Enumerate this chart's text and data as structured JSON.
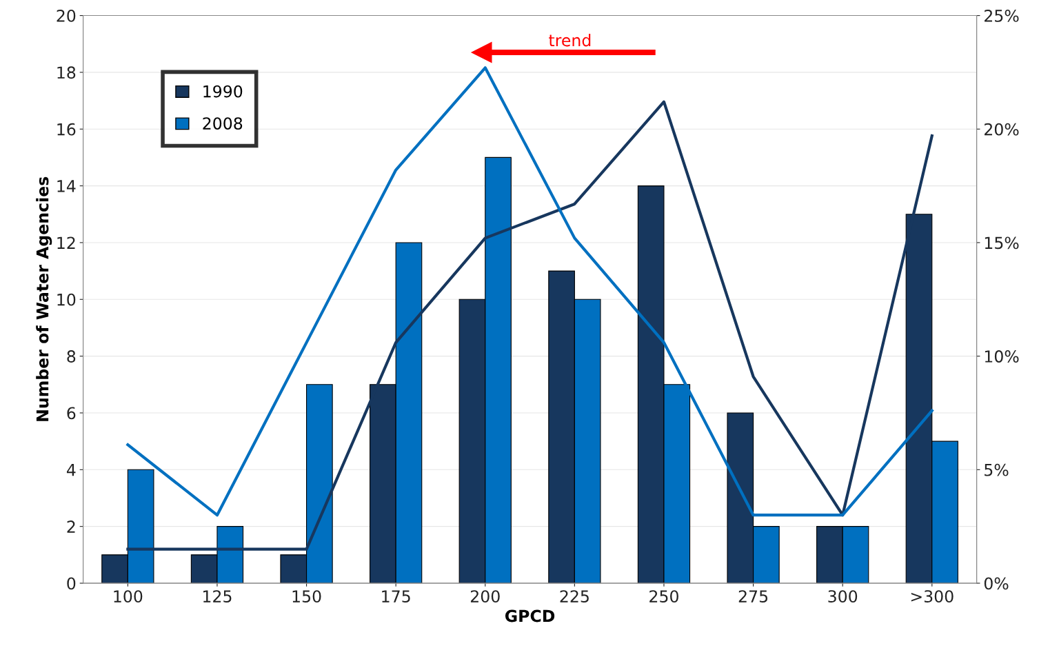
{
  "chart_data": {
    "type": "bar",
    "xlabel": "GPCD",
    "ylabel": "Number of Water Agencies",
    "categories": [
      "100",
      "125",
      "150",
      "175",
      "200",
      "225",
      "250",
      "275",
      "300",
      ">300"
    ],
    "series": [
      {
        "name": "1990",
        "color": "#17375e",
        "values": [
          1,
          1,
          1,
          7,
          10,
          11,
          14,
          6,
          2,
          13
        ]
      },
      {
        "name": "2008",
        "color": "#0070c0",
        "values": [
          4,
          2,
          7,
          12,
          15,
          10,
          7,
          2,
          2,
          5
        ]
      },
      {
        "type": "line",
        "axis": "y2",
        "color": "#17375e",
        "values": [
          1.5,
          1.5,
          1.5,
          10.6,
          15.2,
          16.7,
          21.2,
          9.1,
          3.0,
          19.7
        ]
      },
      {
        "type": "line",
        "axis": "y2",
        "color": "#0070c0",
        "values": [
          6.1,
          3.0,
          10.6,
          18.2,
          22.7,
          15.2,
          10.6,
          3.0,
          3.0,
          7.6
        ]
      }
    ],
    "ylim": [
      0,
      20
    ],
    "yticks": [
      0,
      2,
      4,
      6,
      8,
      10,
      12,
      14,
      16,
      18,
      20
    ],
    "y2lim": [
      0,
      25
    ],
    "y2ticks": [
      {
        "value": 0,
        "label": "0%"
      },
      {
        "value": 5,
        "label": "5%"
      },
      {
        "value": 10,
        "label": "10%"
      },
      {
        "value": 15,
        "label": "15%"
      },
      {
        "value": 20,
        "label": "20%"
      },
      {
        "value": 25,
        "label": "25%"
      }
    ],
    "annotations": [
      "trend"
    ],
    "grid": "y",
    "legend": "top left",
    "line_style": "solid",
    "marker": "none"
  }
}
